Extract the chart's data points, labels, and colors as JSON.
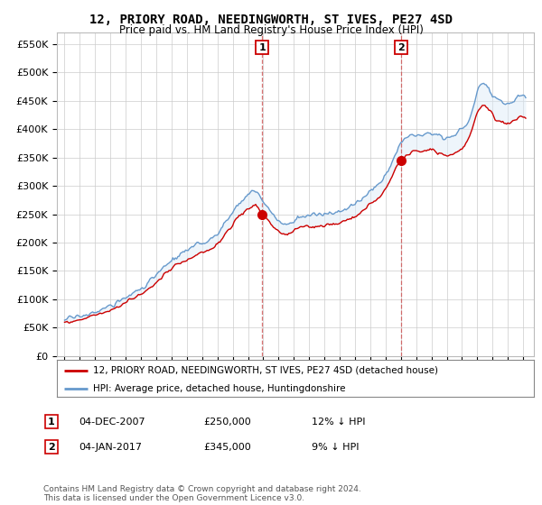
{
  "title": "12, PRIORY ROAD, NEEDINGWORTH, ST IVES, PE27 4SD",
  "subtitle": "Price paid vs. HM Land Registry's House Price Index (HPI)",
  "legend_line1": "12, PRIORY ROAD, NEEDINGWORTH, ST IVES, PE27 4SD (detached house)",
  "legend_line2": "HPI: Average price, detached house, Huntingdonshire",
  "purchase1_date": "04-DEC-2007",
  "purchase1_price": 250000,
  "purchase1_hpi_diff": "12% ↓ HPI",
  "purchase1_year": 2007.92,
  "purchase2_date": "04-JAN-2017",
  "purchase2_price": 345000,
  "purchase2_hpi_diff": "9% ↓ HPI",
  "purchase2_year": 2017.01,
  "red_color": "#cc0000",
  "blue_color": "#6699cc",
  "fill_color": "#daeaf7",
  "dashed_color": "#cc4444",
  "marker_border_color": "#cc0000",
  "background_color": "#ffffff",
  "grid_color": "#cccccc",
  "footer_text": "Contains HM Land Registry data © Crown copyright and database right 2024.\nThis data is licensed under the Open Government Licence v3.0.",
  "ylim_max": 570000,
  "seed": 17
}
